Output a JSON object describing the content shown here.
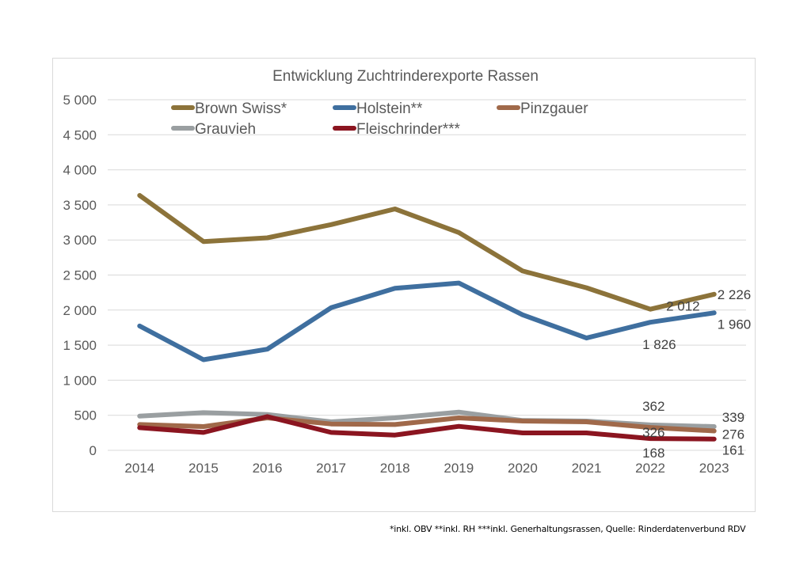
{
  "chart_data": {
    "type": "line",
    "title": "Entwicklung Zuchtrinderexporte Rassen",
    "xlabel": "",
    "ylabel": "",
    "categories": [
      "2014",
      "2015",
      "2016",
      "2017",
      "2018",
      "2019",
      "2020",
      "2021",
      "2022",
      "2023"
    ],
    "ylim": [
      0,
      5000
    ],
    "yticks": [
      0,
      500,
      1000,
      1500,
      2000,
      2500,
      3000,
      3500,
      4000,
      4500,
      5000
    ],
    "ytick_labels": [
      "0",
      "500",
      "1 000",
      "1 500",
      "2 000",
      "2 500",
      "3 000",
      "3 500",
      "4 000",
      "4 500",
      "5 000"
    ],
    "grid": true,
    "legend_position": "top",
    "series": [
      {
        "name": "Brown Swiss*",
        "color": "#8c733a",
        "values": [
          3636,
          2977,
          3030,
          3219,
          3443,
          3106,
          2557,
          2318,
          2012,
          2226
        ],
        "labels": [
          {
            "index": 8,
            "text": "2 012"
          },
          {
            "index": 9,
            "text": "2 226"
          }
        ]
      },
      {
        "name": "Holstein**",
        "color": "#3f6f9f",
        "values": [
          1773,
          1292,
          1443,
          2034,
          2310,
          2386,
          1932,
          1602,
          1826,
          1960
        ],
        "labels": [
          {
            "index": 8,
            "text": "1 826"
          },
          {
            "index": 9,
            "text": "1 960"
          }
        ]
      },
      {
        "name": "Pinzgauer",
        "color": "#a0694a",
        "values": [
          368,
          339,
          463,
          376,
          368,
          463,
          418,
          406,
          326,
          276
        ],
        "labels": [
          {
            "index": 8,
            "text": "326"
          },
          {
            "index": 9,
            "text": "276"
          }
        ]
      },
      {
        "name": "Grauvieh",
        "color": "#9a9fa1",
        "values": [
          488,
          537,
          511,
          406,
          463,
          545,
          425,
          418,
          362,
          339
        ],
        "labels": [
          {
            "index": 8,
            "text": "362"
          },
          {
            "index": 9,
            "text": "339"
          }
        ]
      },
      {
        "name": "Fleischrinder***",
        "color": "#8b1520",
        "values": [
          323,
          255,
          481,
          255,
          218,
          342,
          248,
          248,
          168,
          161
        ],
        "labels": [
          {
            "index": 8,
            "text": "168"
          },
          {
            "index": 9,
            "text": "161"
          }
        ]
      }
    ]
  },
  "footnote": "*inkl. OBV   **inkl. RH ***inkl. Generhaltungsrassen, Quelle: Rinderdatenverbund RDV"
}
